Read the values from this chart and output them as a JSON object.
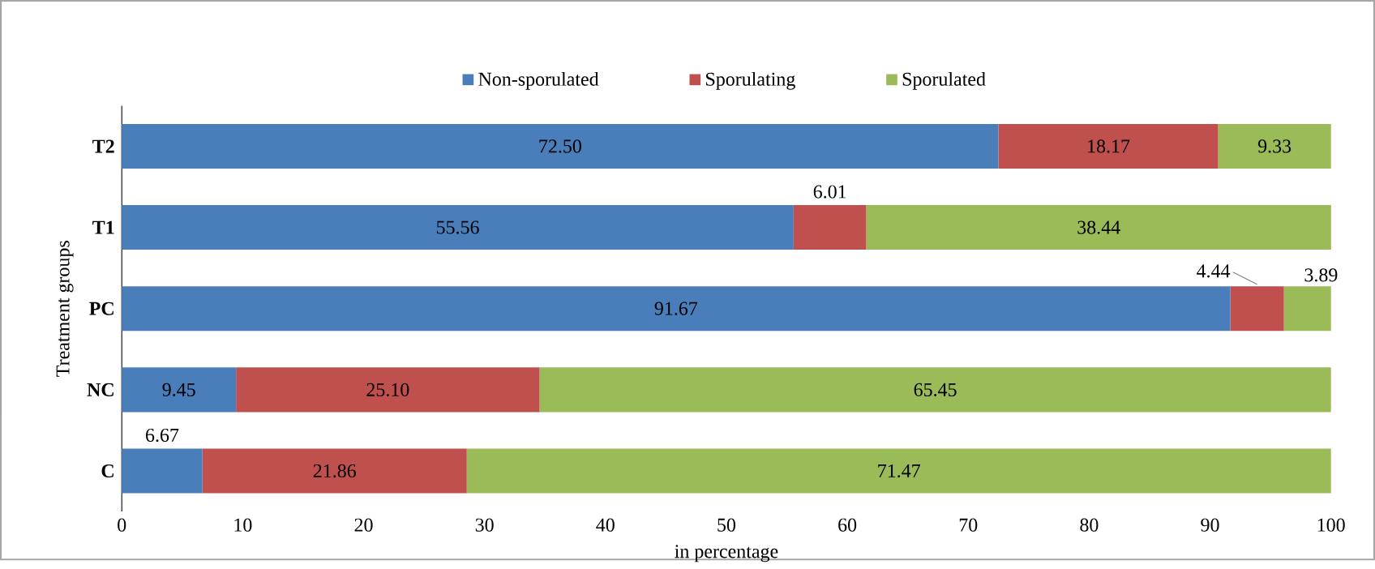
{
  "chart_data": {
    "type": "bar",
    "orientation": "horizontal",
    "stacked": true,
    "categories": [
      "T2",
      "T1",
      "PC",
      "NC",
      "C"
    ],
    "series": [
      {
        "name": "Non-sporulated",
        "color": "#4a7ebb",
        "values": [
          72.5,
          55.56,
          91.67,
          9.45,
          6.67
        ],
        "value_labels": [
          "72.50",
          "55.56",
          "91.67",
          "9.45",
          "6.67"
        ]
      },
      {
        "name": "Sporulating",
        "color": "#c0504d",
        "values": [
          18.17,
          6.01,
          4.44,
          25.1,
          21.86
        ],
        "value_labels": [
          "18.17",
          "6.01",
          "4.44",
          "25.10",
          "21.86"
        ]
      },
      {
        "name": "Sporulated",
        "color": "#9bbb59",
        "values": [
          9.33,
          38.44,
          3.89,
          65.45,
          71.47
        ],
        "value_labels": [
          "9.33",
          "38.44",
          "3.89",
          "65.45",
          "71.47"
        ]
      }
    ],
    "xlim": [
      0,
      100
    ],
    "xticks": [
      0,
      10,
      20,
      30,
      40,
      50,
      60,
      70,
      80,
      90,
      100
    ],
    "xlabel": "in percentage",
    "ylabel": "Treatment groups",
    "legend": "top",
    "grid": false
  }
}
